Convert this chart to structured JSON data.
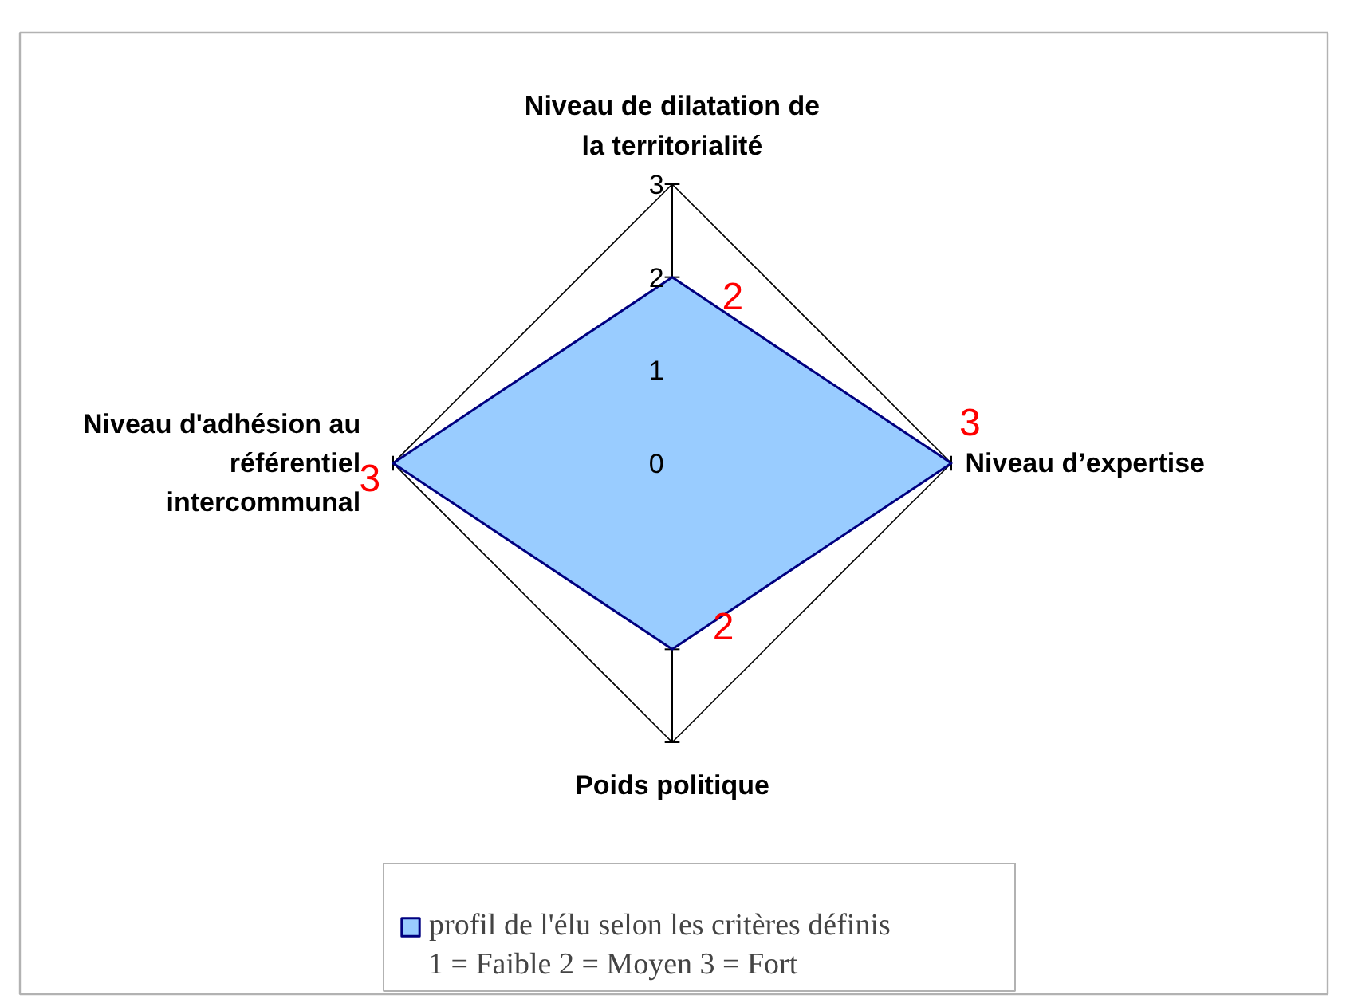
{
  "chart_data": {
    "type": "radar",
    "categories": [
      "Niveau de dilatation de la territorialité",
      "Niveau d’expertise",
      "Poids politique",
      "Niveau d'adhésion au référentiel intercommunal"
    ],
    "series": [
      {
        "name": "profil de l'élu selon les critères définis",
        "color": "#99ccff",
        "values": [
          2,
          3,
          2,
          3
        ]
      }
    ],
    "ylim": [
      0,
      3
    ],
    "yticks": [
      0,
      1,
      2,
      3
    ],
    "data_labels": true,
    "legend": "bottom",
    "annotations": [
      "1 = Faible   2 = Moyen   3 = Fort"
    ]
  }
}
